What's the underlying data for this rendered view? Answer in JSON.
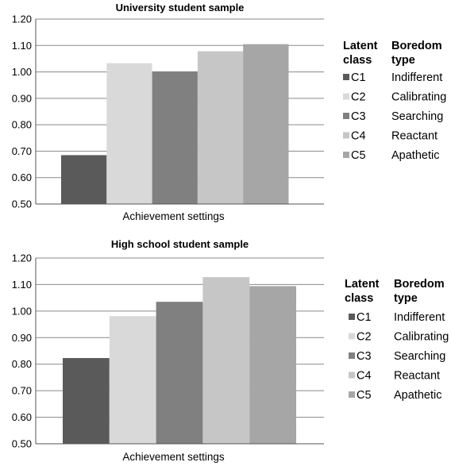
{
  "chart_data": [
    {
      "type": "bar",
      "title": "University student sample",
      "xlabel": "Achievement settings",
      "ylabel": "",
      "ylim": [
        0.5,
        1.2
      ],
      "yticks": [
        "0.50",
        "0.60",
        "0.70",
        "0.80",
        "0.90",
        "1.00",
        "1.10",
        "1.20"
      ],
      "grid": true,
      "legend_position": "right",
      "legend_header": {
        "col1": [
          "Latent",
          "class"
        ],
        "col2": [
          "Boredom",
          "type"
        ]
      },
      "series": [
        {
          "class": "C1",
          "type": "Indifferent",
          "value": 0.685,
          "color": "#5a5a5a"
        },
        {
          "class": "C2",
          "type": "Calibrating",
          "value": 1.033,
          "color": "#d9d9d9"
        },
        {
          "class": "C3",
          "type": "Searching",
          "value": 1.002,
          "color": "#808080"
        },
        {
          "class": "C4",
          "type": "Reactant",
          "value": 1.078,
          "color": "#c6c6c6"
        },
        {
          "class": "C5",
          "type": "Apathetic",
          "value": 1.105,
          "color": "#a6a6a6"
        }
      ]
    },
    {
      "type": "bar",
      "title": "High school student sample",
      "xlabel": "Achievement settings",
      "ylabel": "",
      "ylim": [
        0.5,
        1.2
      ],
      "yticks": [
        "0.50",
        "0.60",
        "0.70",
        "0.80",
        "0.90",
        "1.00",
        "1.10",
        "1.20"
      ],
      "grid": true,
      "legend_position": "right",
      "legend_header": {
        "col1": [
          "Latent",
          "class"
        ],
        "col2": [
          "Boredom",
          "type"
        ]
      },
      "series": [
        {
          "class": "C1",
          "type": "Indifferent",
          "value": 0.823,
          "color": "#5a5a5a"
        },
        {
          "class": "C2",
          "type": "Calibrating",
          "value": 0.981,
          "color": "#d9d9d9"
        },
        {
          "class": "C3",
          "type": "Searching",
          "value": 1.035,
          "color": "#808080"
        },
        {
          "class": "C4",
          "type": "Reactant",
          "value": 1.128,
          "color": "#c6c6c6"
        },
        {
          "class": "C5",
          "type": "Apathetic",
          "value": 1.094,
          "color": "#a6a6a6"
        }
      ]
    }
  ]
}
